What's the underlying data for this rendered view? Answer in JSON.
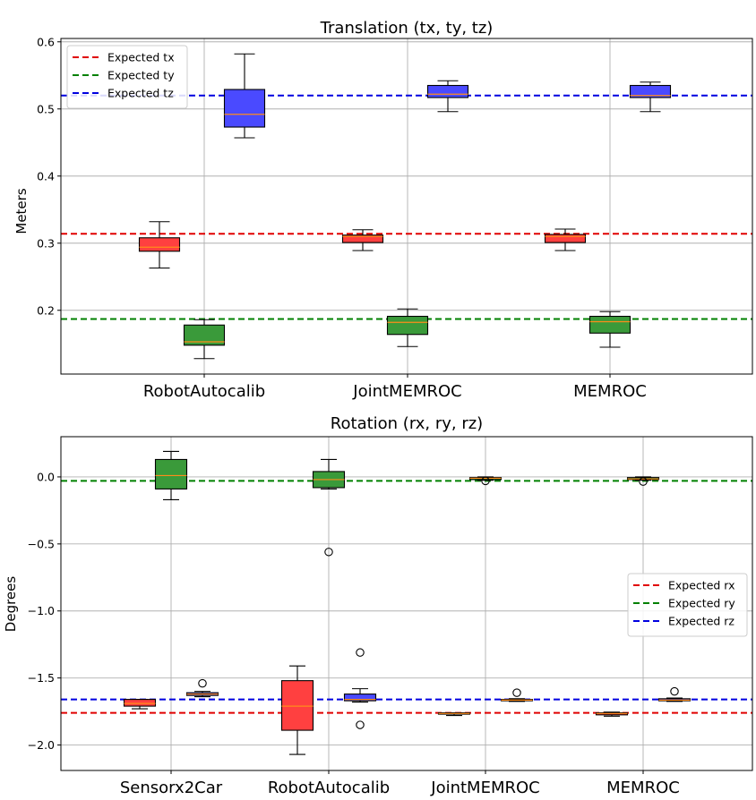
{
  "colors": {
    "x": "#ff4040",
    "y": "#3a9a3a",
    "z": "#4a4aff",
    "ref_x": "#e00000",
    "ref_y": "#008000",
    "ref_z": "#0000e0",
    "median": "#ff8c1a"
  },
  "chart_data": [
    {
      "type": "box",
      "title": "Translation (tx, ty, tz)",
      "ylabel": "Meters",
      "xlabel": "",
      "ylim": [
        0.105,
        0.605
      ],
      "yticks": [
        0.2,
        0.3,
        0.4,
        0.5,
        0.6
      ],
      "ytick_labels": [
        "0.2",
        "0.3",
        "0.4",
        "0.5",
        "0.6"
      ],
      "categories": [
        "RobotAutocalib",
        "JointMEMROC",
        "MEMROC"
      ],
      "legend_position": "top-left",
      "reference_lines": [
        {
          "label": "Expected tx",
          "value": 0.314,
          "color_key": "ref_x"
        },
        {
          "label": "Expected ty",
          "value": 0.187,
          "color_key": "ref_y"
        },
        {
          "label": "Expected tz",
          "value": 0.52,
          "color_key": "ref_z"
        }
      ],
      "series": [
        {
          "name": "tx",
          "color_key": "x",
          "boxes": [
            {
              "whislo": 0.263,
              "q1": 0.288,
              "med": 0.294,
              "q3": 0.308,
              "whishi": 0.332,
              "fliers": []
            },
            {
              "whislo": 0.289,
              "q1": 0.301,
              "med": 0.31,
              "q3": 0.312,
              "whishi": 0.32,
              "fliers": []
            },
            {
              "whislo": 0.289,
              "q1": 0.301,
              "med": 0.31,
              "q3": 0.313,
              "whishi": 0.321,
              "fliers": []
            }
          ]
        },
        {
          "name": "ty",
          "color_key": "y",
          "boxes": [
            {
              "whislo": 0.128,
              "q1": 0.148,
              "med": 0.153,
              "q3": 0.178,
              "whishi": 0.186,
              "fliers": []
            },
            {
              "whislo": 0.146,
              "q1": 0.164,
              "med": 0.182,
              "q3": 0.191,
              "whishi": 0.202,
              "fliers": []
            },
            {
              "whislo": 0.145,
              "q1": 0.166,
              "med": 0.183,
              "q3": 0.191,
              "whishi": 0.198,
              "fliers": []
            }
          ]
        },
        {
          "name": "tz",
          "color_key": "z",
          "boxes": [
            {
              "whislo": 0.457,
              "q1": 0.473,
              "med": 0.492,
              "q3": 0.529,
              "whishi": 0.582,
              "fliers": []
            },
            {
              "whislo": 0.496,
              "q1": 0.517,
              "med": 0.522,
              "q3": 0.535,
              "whishi": 0.542,
              "fliers": []
            },
            {
              "whislo": 0.496,
              "q1": 0.517,
              "med": 0.52,
              "q3": 0.535,
              "whishi": 0.54,
              "fliers": []
            }
          ]
        }
      ]
    },
    {
      "type": "box",
      "title": "Rotation (rx, ry, rz)",
      "ylabel": "Degrees",
      "xlabel": "",
      "ylim": [
        -2.19,
        0.3
      ],
      "yticks": [
        -2.0,
        -1.5,
        -1.0,
        -0.5,
        0.0
      ],
      "ytick_labels": [
        "−2.0",
        "−1.5",
        "−1.0",
        "−0.5",
        "0.0"
      ],
      "categories": [
        "Sensorx2Car",
        "RobotAutocalib",
        "JointMEMROC",
        "MEMROC"
      ],
      "legend_position": "center-right",
      "reference_lines": [
        {
          "label": "Expected rx",
          "value": -1.76,
          "color_key": "ref_x"
        },
        {
          "label": "Expected ry",
          "value": -0.03,
          "color_key": "ref_y"
        },
        {
          "label": "Expected rz",
          "value": -1.66,
          "color_key": "ref_z"
        }
      ],
      "series": [
        {
          "name": "rx",
          "color_key": "x",
          "boxes": [
            {
              "whislo": -1.73,
              "q1": -1.71,
              "med": -1.69,
              "q3": -1.66,
              "whishi": -1.66,
              "fliers": []
            },
            {
              "whislo": -2.07,
              "q1": -1.89,
              "med": -1.71,
              "q3": -1.52,
              "whishi": -1.41,
              "fliers": []
            },
            {
              "whislo": -1.78,
              "q1": -1.77,
              "med": -1.765,
              "q3": -1.76,
              "whishi": -1.76,
              "fliers": []
            },
            {
              "whislo": -1.785,
              "q1": -1.775,
              "med": -1.765,
              "q3": -1.76,
              "whishi": -1.755,
              "fliers": []
            }
          ]
        },
        {
          "name": "ry",
          "color_key": "y",
          "boxes": [
            {
              "whislo": -0.17,
              "q1": -0.09,
              "med": 0.01,
              "q3": 0.13,
              "whishi": 0.19,
              "fliers": []
            },
            {
              "whislo": -0.09,
              "q1": -0.08,
              "med": -0.02,
              "q3": 0.04,
              "whishi": 0.13,
              "fliers": [
                -0.56
              ]
            },
            {
              "whislo": -0.025,
              "q1": -0.02,
              "med": -0.01,
              "q3": -0.005,
              "whishi": 0.0,
              "fliers": [
                -0.03
              ]
            },
            {
              "whislo": -0.025,
              "q1": -0.02,
              "med": -0.015,
              "q3": -0.005,
              "whishi": 0.0,
              "fliers": [
                -0.035
              ]
            }
          ]
        },
        {
          "name": "rz",
          "color_key": "z",
          "boxes": [
            {
              "whislo": -1.64,
              "q1": -1.63,
              "med": -1.62,
              "q3": -1.61,
              "whishi": -1.6,
              "fliers": [
                -1.54
              ]
            },
            {
              "whislo": -1.68,
              "q1": -1.67,
              "med": -1.66,
              "q3": -1.62,
              "whishi": -1.58,
              "fliers": [
                -1.31,
                -1.85
              ]
            },
            {
              "whislo": -1.675,
              "q1": -1.67,
              "med": -1.665,
              "q3": -1.66,
              "whishi": -1.655,
              "fliers": [
                -1.61
              ]
            },
            {
              "whislo": -1.675,
              "q1": -1.67,
              "med": -1.665,
              "q3": -1.655,
              "whishi": -1.65,
              "fliers": [
                -1.6
              ]
            }
          ]
        }
      ]
    }
  ]
}
